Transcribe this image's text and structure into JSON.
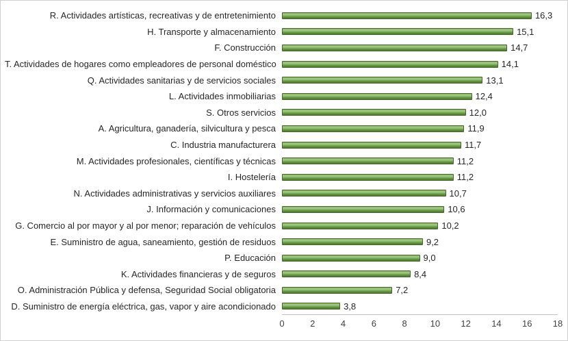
{
  "chart_data": {
    "type": "bar",
    "orientation": "horizontal",
    "title": "",
    "xlabel": "",
    "ylabel": "",
    "xlim": [
      0,
      18
    ],
    "x_ticks": [
      "0",
      "2",
      "4",
      "6",
      "8",
      "10",
      "12",
      "14",
      "16",
      "18"
    ],
    "grid": false,
    "legend": false,
    "bar_color": "#5d8f3b",
    "bar_border_color": "#44662b",
    "categories": [
      "R. Actividades artísticas, recreativas y de entretenimiento",
      "H. Transporte y almacenamiento",
      "F. Construcción",
      "T. Actividades de hogares como empleadores de personal doméstico",
      "Q. Actividades sanitarias y de servicios sociales",
      "L. Actividades inmobiliarias",
      "S. Otros servicios",
      "A. Agricultura, ganadería, silvicultura y pesca",
      "C. Industria manufacturera",
      "M. Actividades profesionales, científicas y técnicas",
      "I. Hostelería",
      "N. Actividades administrativas y servicios auxiliares",
      "J. Información y comunicaciones",
      "G. Comercio al por mayor y al por menor; reparación de vehículos",
      "E. Suministro de agua, saneamiento, gestión de residuos",
      "P. Educación",
      "K. Actividades financieras y de seguros",
      "O. Administración Pública y defensa, Seguridad Social obligatoria",
      "D. Suministro de energía eléctrica, gas, vapor y aire acondicionado"
    ],
    "values": [
      16.3,
      15.1,
      14.7,
      14.1,
      13.1,
      12.4,
      12.0,
      11.9,
      11.7,
      11.2,
      11.2,
      10.7,
      10.6,
      10.2,
      9.2,
      9.0,
      8.4,
      7.2,
      3.8
    ],
    "value_labels": [
      "16,3",
      "15,1",
      "14,7",
      "14,1",
      "13,1",
      "12,4",
      "12,0",
      "11,9",
      "11,7",
      "11,2",
      "11,2",
      "10,7",
      "10,6",
      "10,2",
      "9,2",
      "9,0",
      "8,4",
      "7,2",
      "3,8"
    ]
  }
}
